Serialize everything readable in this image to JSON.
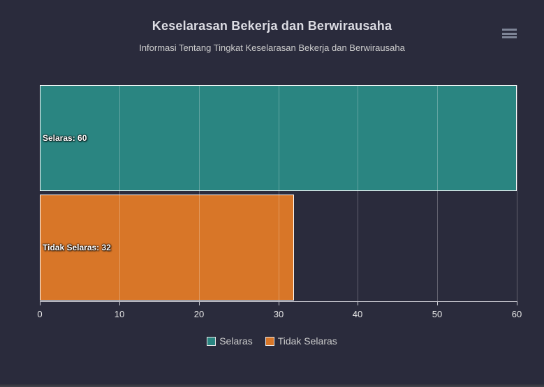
{
  "header": {
    "title": "Keselarasan Bekerja dan Berwirausaha",
    "subtitle": "Informasi Tentang Tingkat Keselarasan Bekerja dan Berwirausaha",
    "menu_icon": "hamburger-menu-icon"
  },
  "chart_data": {
    "type": "bar",
    "orientation": "horizontal",
    "title": "Keselarasan Bekerja dan Berwirausaha",
    "subtitle": "Informasi Tentang Tingkat Keselarasan Bekerja dan Berwirausaha",
    "categories": [
      "Selaras",
      "Tidak Selaras"
    ],
    "values": [
      60,
      32
    ],
    "data_labels": [
      "Selaras: 60",
      "Tidak Selaras: 32"
    ],
    "bar_colors": [
      "#2a8581",
      "#d87628"
    ],
    "xlabel": "",
    "ylabel": "",
    "xlim": [
      0,
      60
    ],
    "x_ticks": [
      0,
      10,
      20,
      30,
      40,
      50,
      60
    ],
    "grid": true,
    "legend": {
      "position": "bottom",
      "entries": [
        {
          "label": "Selaras",
          "color": "#2a8581"
        },
        {
          "label": "Tidak Selaras",
          "color": "#d87628"
        }
      ]
    }
  },
  "colors": {
    "background": "#2a2b3c",
    "title_text": "#dcdce3",
    "subtitle_text": "#cccccc",
    "axis_label_text": "#e6e6e6",
    "legend_text": "#cccccc",
    "bar_border": "#ffffff",
    "axis_line": "#c8c8d0"
  }
}
